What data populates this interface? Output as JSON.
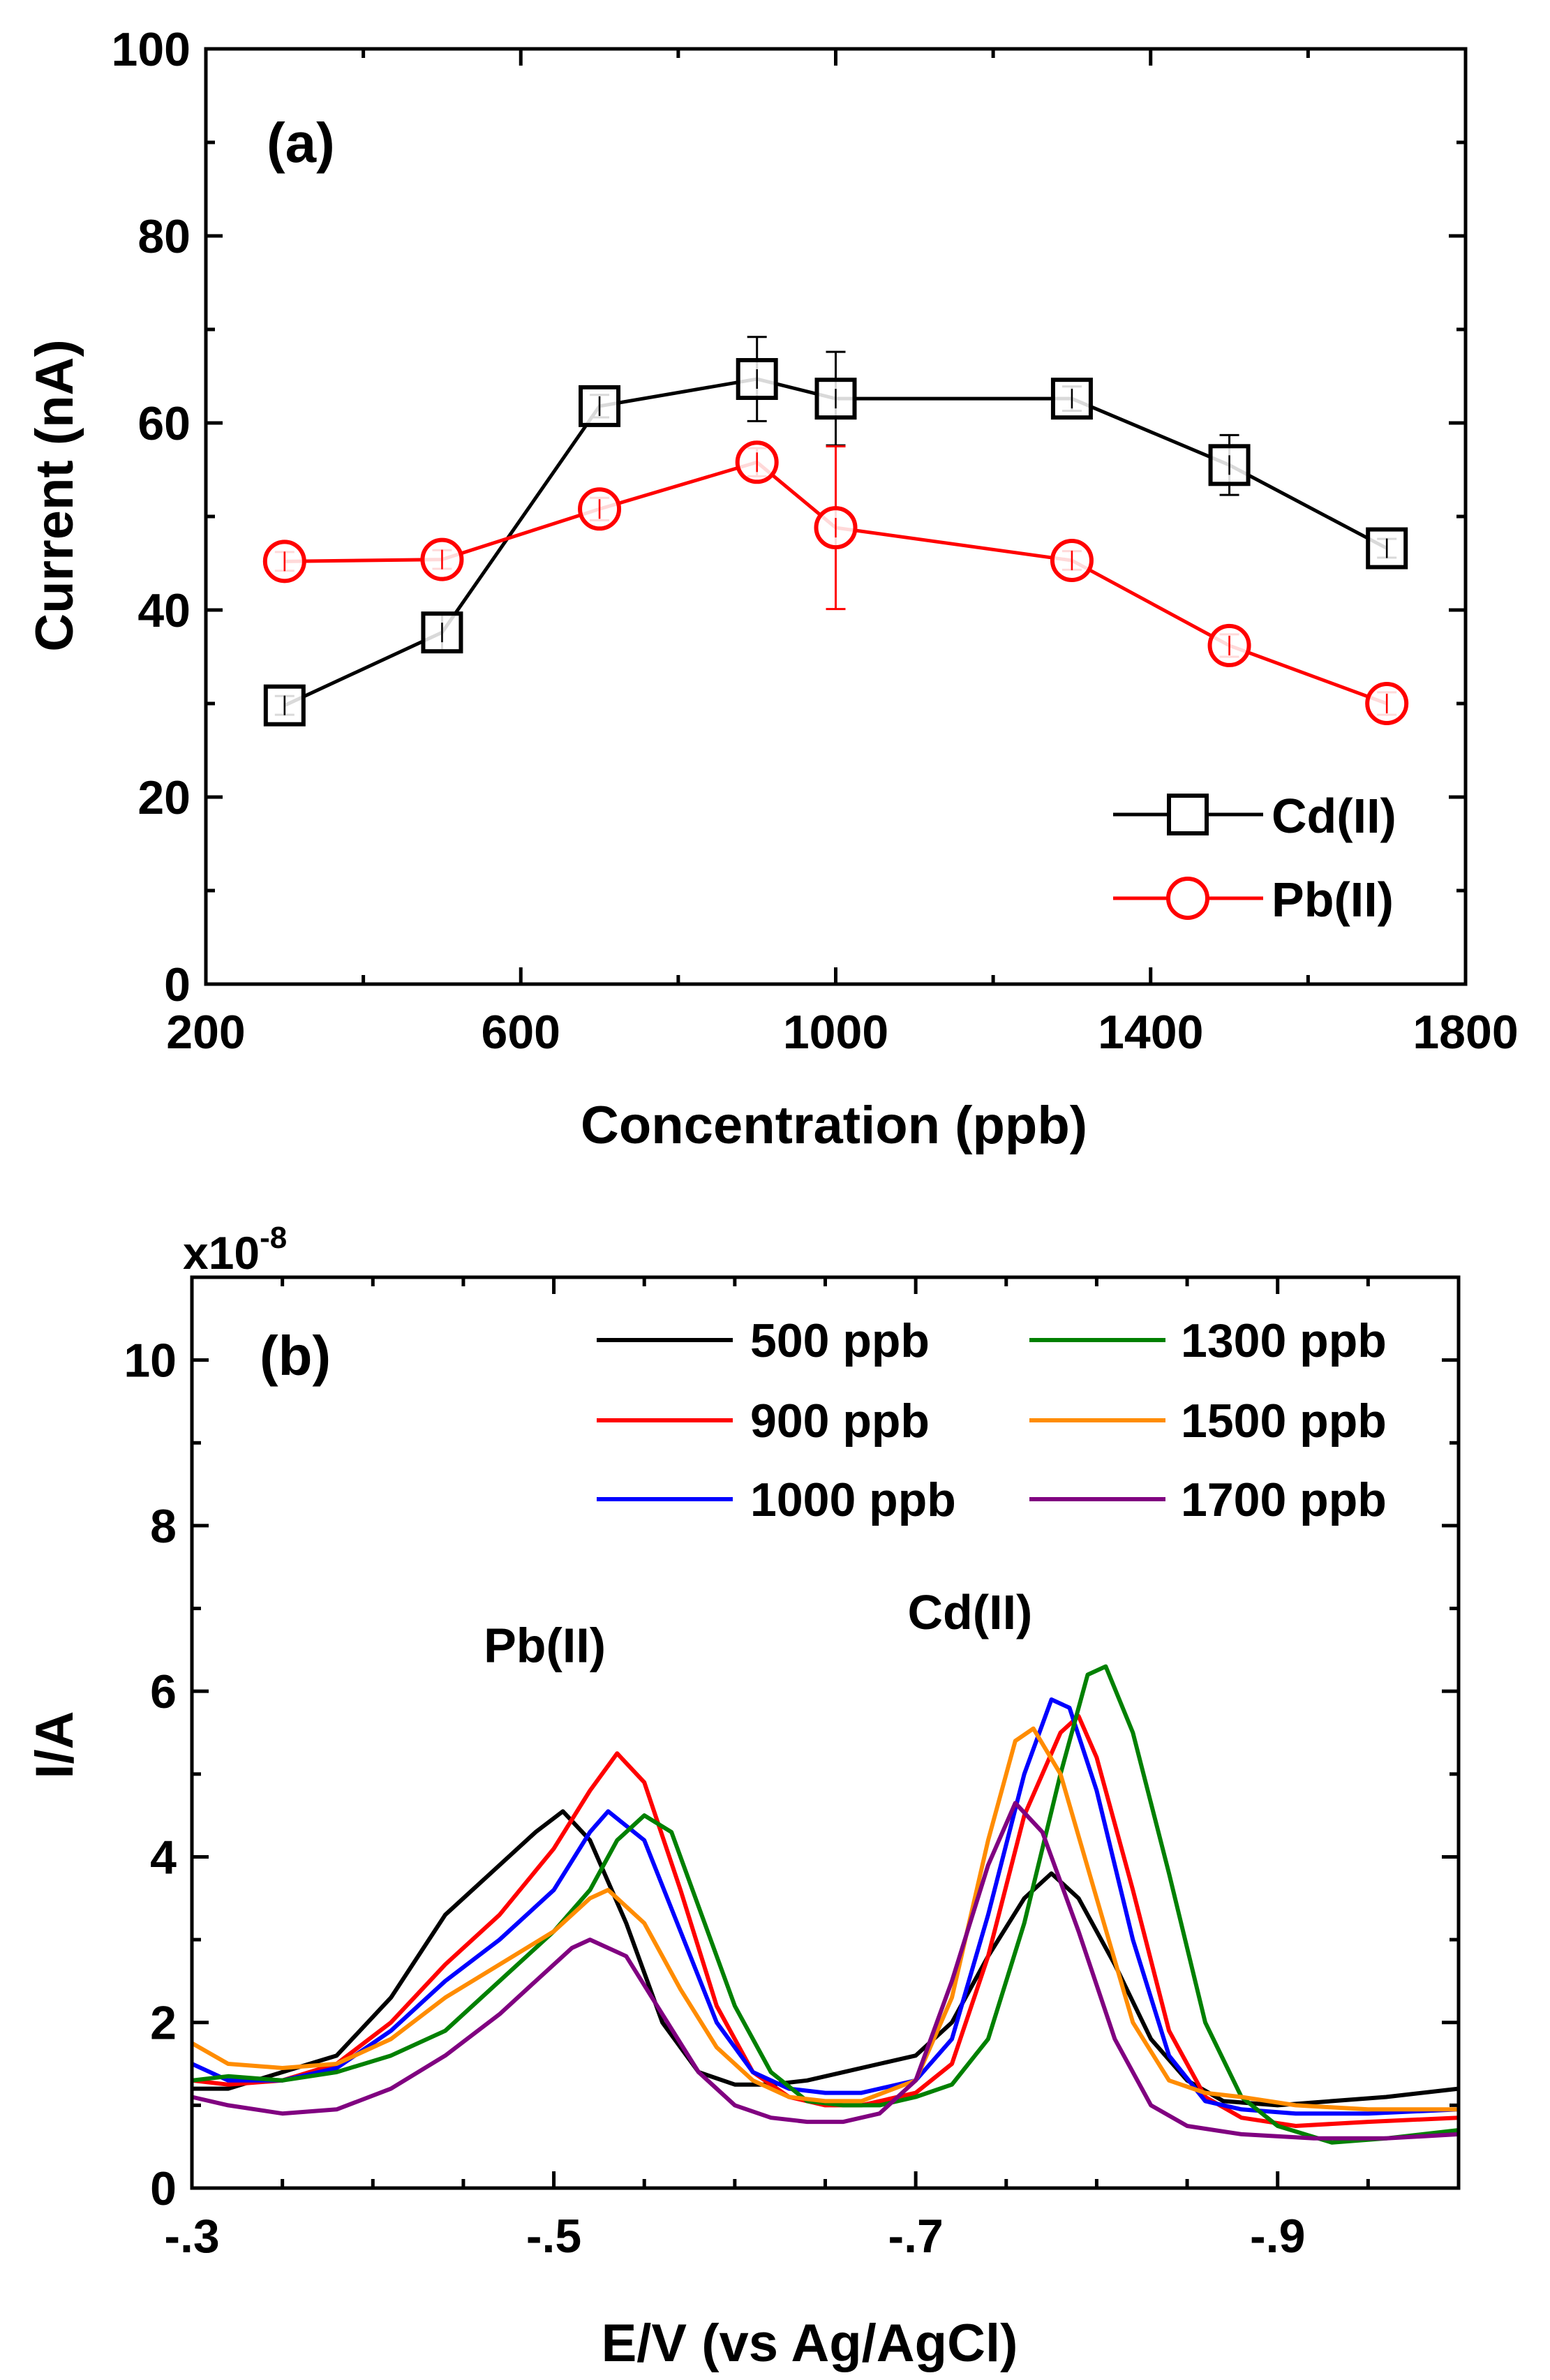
{
  "chart_data": [
    {
      "panel": "a",
      "type": "line",
      "panel_label": "(a)",
      "xlabel": "Concentration (ppb)",
      "ylabel": "Current (nA)",
      "xlim": [
        200,
        1800
      ],
      "ylim": [
        0,
        100
      ],
      "xticks": [
        200,
        600,
        1000,
        1400,
        1800
      ],
      "yticks": [
        0,
        20,
        40,
        60,
        80,
        100
      ],
      "legend_position": "bottom-right",
      "series": [
        {
          "name": "Cd(II)",
          "color": "#000000",
          "marker": "square",
          "x": [
            300,
            500,
            700,
            900,
            1000,
            1300,
            1500,
            1700
          ],
          "y": [
            29.8,
            37.6,
            61.8,
            64.7,
            62.6,
            62.6,
            55.5,
            46.6
          ],
          "err": [
            1.0,
            2.0,
            1.2,
            4.5,
            5.0,
            1.3,
            3.2,
            1.0
          ]
        },
        {
          "name": "Pb(II)",
          "color": "#ff0000",
          "marker": "circle",
          "x": [
            300,
            500,
            700,
            900,
            1000,
            1300,
            1500,
            1700
          ],
          "y": [
            45.2,
            45.4,
            50.8,
            55.8,
            48.8,
            45.3,
            36.2,
            30.0
          ],
          "err": [
            1.0,
            1.0,
            1.2,
            1.5,
            8.7,
            1.0,
            1.2,
            1.2
          ]
        }
      ]
    },
    {
      "panel": "b",
      "type": "line",
      "panel_label": "(b)",
      "xlabel": "E/V (vs Ag/AgCl)",
      "ylabel": "I/A",
      "axis_multiplier": "x10",
      "axis_multiplier_exp": "-8",
      "xlim": [
        -0.3,
        -1.0
      ],
      "ylim": [
        0,
        11
      ],
      "xticks": [
        -0.3,
        -0.5,
        -0.7,
        -0.9
      ],
      "yticks": [
        0,
        2,
        4,
        6,
        8,
        10
      ],
      "peak_labels": [
        {
          "text": "Pb(II)",
          "x": -0.495,
          "y": 6.35
        },
        {
          "text": "Cd(II)",
          "x": -0.73,
          "y": 6.75
        }
      ],
      "legend_position": "top-right",
      "series": [
        {
          "name": "500 ppb",
          "color": "#000000",
          "points": [
            [
              -0.3,
              1.2
            ],
            [
              -0.32,
              1.2
            ],
            [
              -0.35,
              1.4
            ],
            [
              -0.38,
              1.6
            ],
            [
              -0.41,
              2.3
            ],
            [
              -0.44,
              3.3
            ],
            [
              -0.47,
              3.9
            ],
            [
              -0.49,
              4.3
            ],
            [
              -0.505,
              4.55
            ],
            [
              -0.52,
              4.2
            ],
            [
              -0.54,
              3.2
            ],
            [
              -0.56,
              2.0
            ],
            [
              -0.58,
              1.4
            ],
            [
              -0.6,
              1.25
            ],
            [
              -0.62,
              1.25
            ],
            [
              -0.64,
              1.3
            ],
            [
              -0.66,
              1.4
            ],
            [
              -0.68,
              1.5
            ],
            [
              -0.7,
              1.6
            ],
            [
              -0.72,
              2.0
            ],
            [
              -0.74,
              2.8
            ],
            [
              -0.76,
              3.5
            ],
            [
              -0.775,
              3.8
            ],
            [
              -0.79,
              3.5
            ],
            [
              -0.81,
              2.7
            ],
            [
              -0.83,
              1.8
            ],
            [
              -0.85,
              1.3
            ],
            [
              -0.87,
              1.05
            ],
            [
              -0.9,
              1.0
            ],
            [
              -0.93,
              1.05
            ],
            [
              -0.96,
              1.1
            ],
            [
              -1.0,
              1.2
            ]
          ]
        },
        {
          "name": "900 ppb",
          "color": "#ff0000",
          "points": [
            [
              -0.3,
              1.3
            ],
            [
              -0.32,
              1.25
            ],
            [
              -0.35,
              1.3
            ],
            [
              -0.38,
              1.5
            ],
            [
              -0.41,
              2.0
            ],
            [
              -0.44,
              2.7
            ],
            [
              -0.47,
              3.3
            ],
            [
              -0.5,
              4.1
            ],
            [
              -0.52,
              4.8
            ],
            [
              -0.535,
              5.25
            ],
            [
              -0.55,
              4.9
            ],
            [
              -0.57,
              3.6
            ],
            [
              -0.59,
              2.2
            ],
            [
              -0.61,
              1.4
            ],
            [
              -0.63,
              1.1
            ],
            [
              -0.65,
              1.0
            ],
            [
              -0.67,
              1.0
            ],
            [
              -0.7,
              1.15
            ],
            [
              -0.72,
              1.5
            ],
            [
              -0.74,
              2.8
            ],
            [
              -0.76,
              4.5
            ],
            [
              -0.78,
              5.5
            ],
            [
              -0.79,
              5.7
            ],
            [
              -0.8,
              5.2
            ],
            [
              -0.82,
              3.6
            ],
            [
              -0.84,
              1.9
            ],
            [
              -0.86,
              1.1
            ],
            [
              -0.88,
              0.85
            ],
            [
              -0.91,
              0.75
            ],
            [
              -0.95,
              0.8
            ],
            [
              -1.0,
              0.85
            ]
          ]
        },
        {
          "name": "1000 ppb",
          "color": "#0000ff",
          "points": [
            [
              -0.3,
              1.5
            ],
            [
              -0.32,
              1.3
            ],
            [
              -0.35,
              1.3
            ],
            [
              -0.38,
              1.45
            ],
            [
              -0.41,
              1.9
            ],
            [
              -0.44,
              2.5
            ],
            [
              -0.47,
              3.0
            ],
            [
              -0.5,
              3.6
            ],
            [
              -0.52,
              4.3
            ],
            [
              -0.53,
              4.55
            ],
            [
              -0.55,
              4.2
            ],
            [
              -0.57,
              3.1
            ],
            [
              -0.59,
              2.0
            ],
            [
              -0.61,
              1.4
            ],
            [
              -0.63,
              1.2
            ],
            [
              -0.65,
              1.15
            ],
            [
              -0.67,
              1.15
            ],
            [
              -0.7,
              1.3
            ],
            [
              -0.72,
              1.8
            ],
            [
              -0.74,
              3.3
            ],
            [
              -0.76,
              5.0
            ],
            [
              -0.775,
              5.9
            ],
            [
              -0.785,
              5.8
            ],
            [
              -0.8,
              4.8
            ],
            [
              -0.82,
              3.0
            ],
            [
              -0.84,
              1.6
            ],
            [
              -0.86,
              1.05
            ],
            [
              -0.88,
              0.95
            ],
            [
              -0.91,
              0.9
            ],
            [
              -0.95,
              0.9
            ],
            [
              -1.0,
              0.95
            ]
          ]
        },
        {
          "name": "1300 ppb",
          "color": "#008000",
          "points": [
            [
              -0.3,
              1.3
            ],
            [
              -0.32,
              1.35
            ],
            [
              -0.35,
              1.3
            ],
            [
              -0.38,
              1.4
            ],
            [
              -0.41,
              1.6
            ],
            [
              -0.44,
              1.9
            ],
            [
              -0.47,
              2.5
            ],
            [
              -0.5,
              3.1
            ],
            [
              -0.52,
              3.6
            ],
            [
              -0.535,
              4.2
            ],
            [
              -0.55,
              4.5
            ],
            [
              -0.565,
              4.3
            ],
            [
              -0.58,
              3.4
            ],
            [
              -0.6,
              2.2
            ],
            [
              -0.62,
              1.4
            ],
            [
              -0.64,
              1.05
            ],
            [
              -0.66,
              1.0
            ],
            [
              -0.68,
              1.0
            ],
            [
              -0.7,
              1.1
            ],
            [
              -0.72,
              1.25
            ],
            [
              -0.74,
              1.8
            ],
            [
              -0.76,
              3.2
            ],
            [
              -0.78,
              5.0
            ],
            [
              -0.795,
              6.2
            ],
            [
              -0.805,
              6.3
            ],
            [
              -0.82,
              5.5
            ],
            [
              -0.84,
              3.8
            ],
            [
              -0.86,
              2.0
            ],
            [
              -0.88,
              1.1
            ],
            [
              -0.9,
              0.75
            ],
            [
              -0.93,
              0.55
            ],
            [
              -0.96,
              0.6
            ],
            [
              -1.0,
              0.7
            ]
          ]
        },
        {
          "name": "1500 ppb",
          "color": "#ff8c00",
          "points": [
            [
              -0.3,
              1.75
            ],
            [
              -0.32,
              1.5
            ],
            [
              -0.35,
              1.45
            ],
            [
              -0.38,
              1.5
            ],
            [
              -0.41,
              1.8
            ],
            [
              -0.44,
              2.3
            ],
            [
              -0.47,
              2.7
            ],
            [
              -0.5,
              3.1
            ],
            [
              -0.52,
              3.5
            ],
            [
              -0.53,
              3.6
            ],
            [
              -0.55,
              3.2
            ],
            [
              -0.57,
              2.4
            ],
            [
              -0.59,
              1.7
            ],
            [
              -0.61,
              1.3
            ],
            [
              -0.63,
              1.1
            ],
            [
              -0.65,
              1.05
            ],
            [
              -0.67,
              1.05
            ],
            [
              -0.7,
              1.3
            ],
            [
              -0.72,
              2.3
            ],
            [
              -0.74,
              4.2
            ],
            [
              -0.755,
              5.4
            ],
            [
              -0.765,
              5.55
            ],
            [
              -0.78,
              5.0
            ],
            [
              -0.8,
              3.5
            ],
            [
              -0.82,
              2.0
            ],
            [
              -0.84,
              1.3
            ],
            [
              -0.86,
              1.15
            ],
            [
              -0.88,
              1.1
            ],
            [
              -0.91,
              1.0
            ],
            [
              -0.95,
              0.95
            ],
            [
              -1.0,
              0.95
            ]
          ]
        },
        {
          "name": "1700 ppb",
          "color": "#800080",
          "points": [
            [
              -0.3,
              1.1
            ],
            [
              -0.32,
              1.0
            ],
            [
              -0.35,
              0.9
            ],
            [
              -0.38,
              0.95
            ],
            [
              -0.41,
              1.2
            ],
            [
              -0.44,
              1.6
            ],
            [
              -0.47,
              2.1
            ],
            [
              -0.49,
              2.5
            ],
            [
              -0.51,
              2.9
            ],
            [
              -0.52,
              3.0
            ],
            [
              -0.54,
              2.8
            ],
            [
              -0.56,
              2.1
            ],
            [
              -0.58,
              1.4
            ],
            [
              -0.6,
              1.0
            ],
            [
              -0.62,
              0.85
            ],
            [
              -0.64,
              0.8
            ],
            [
              -0.66,
              0.8
            ],
            [
              -0.68,
              0.9
            ],
            [
              -0.7,
              1.3
            ],
            [
              -0.72,
              2.5
            ],
            [
              -0.74,
              3.9
            ],
            [
              -0.755,
              4.65
            ],
            [
              -0.77,
              4.3
            ],
            [
              -0.79,
              3.1
            ],
            [
              -0.81,
              1.8
            ],
            [
              -0.83,
              1.0
            ],
            [
              -0.85,
              0.75
            ],
            [
              -0.88,
              0.65
            ],
            [
              -0.92,
              0.6
            ],
            [
              -0.96,
              0.6
            ],
            [
              -1.0,
              0.65
            ]
          ]
        }
      ]
    }
  ]
}
